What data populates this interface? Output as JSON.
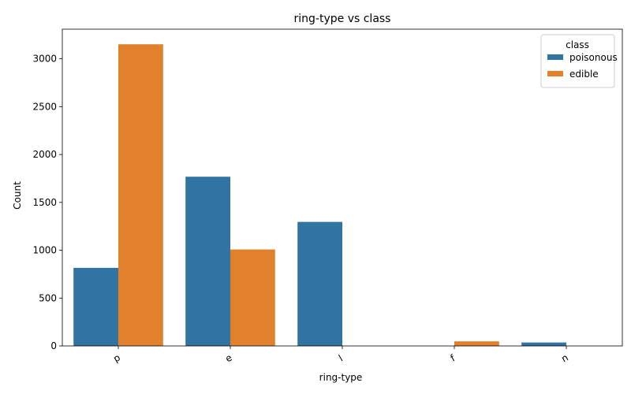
{
  "chart_data": {
    "type": "bar",
    "title": "ring-type vs class",
    "xlabel": "ring-type",
    "ylabel": "Count",
    "categories": [
      "p",
      "e",
      "l",
      "f",
      "n"
    ],
    "series": [
      {
        "name": "poisonous",
        "values": [
          816,
          1768,
          1296,
          0,
          36
        ],
        "color": "#3274a1"
      },
      {
        "name": "edible",
        "values": [
          3152,
          1008,
          0,
          48,
          0
        ],
        "color": "#e1812c"
      }
    ],
    "ylim": [
      0,
      3310
    ],
    "yticks": [
      0,
      500,
      1000,
      1500,
      2000,
      2500,
      3000
    ],
    "legend": {
      "title": "class",
      "placement": "top-right"
    },
    "grid": false
  }
}
